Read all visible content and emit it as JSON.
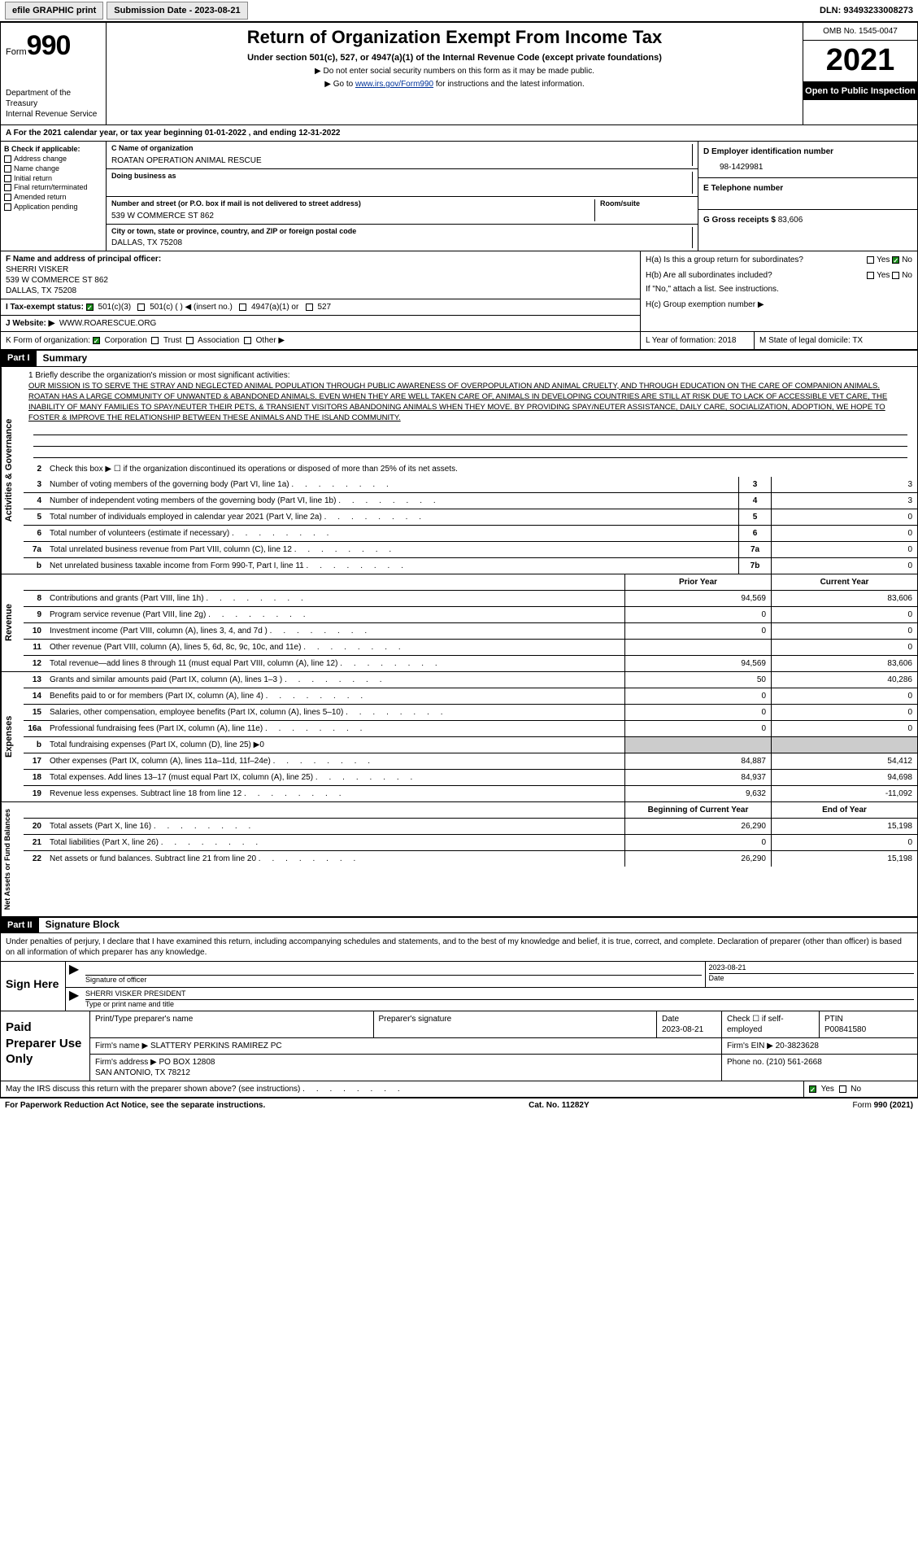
{
  "topbar": {
    "efile": "efile GRAPHIC print",
    "sub_label": "Submission Date - 2023-08-21",
    "dln": "DLN: 93493233008273"
  },
  "header": {
    "form_prefix": "Form",
    "form_num": "990",
    "title": "Return of Organization Exempt From Income Tax",
    "sub": "Under section 501(c), 527, or 4947(a)(1) of the Internal Revenue Code (except private foundations)",
    "note1": "▶ Do not enter social security numbers on this form as it may be made public.",
    "note2_a": "▶ Go to ",
    "note2_link": "www.irs.gov/Form990",
    "note2_b": " for instructions and the latest information.",
    "dept": "Department of the Treasury\nInternal Revenue Service",
    "omb": "OMB No. 1545-0047",
    "year": "2021",
    "open": "Open to Public Inspection"
  },
  "rowA": "A For the 2021 calendar year, or tax year beginning 01-01-2022  , and ending 12-31-2022",
  "B": {
    "label": "B Check if applicable:",
    "items": [
      "Address change",
      "Name change",
      "Initial return",
      "Final return/terminated",
      "Amended return",
      "Application pending"
    ]
  },
  "C": {
    "name_lab": "C Name of organization",
    "name": "ROATAN OPERATION ANIMAL RESCUE",
    "dba_lab": "Doing business as",
    "addr_lab": "Number and street (or P.O. box if mail is not delivered to street address)",
    "addr": "539 W COMMERCE ST 862",
    "room_lab": "Room/suite",
    "city_lab": "City or town, state or province, country, and ZIP or foreign postal code",
    "city": "DALLAS, TX  75208"
  },
  "D": {
    "lab": "D Employer identification number",
    "val": "98-1429981"
  },
  "E": {
    "lab": "E Telephone number",
    "val": ""
  },
  "G": {
    "lab": "G Gross receipts $",
    "val": "83,606"
  },
  "F": {
    "lab": "F  Name and address of principal officer:",
    "name": "SHERRI VISKER",
    "addr1": "539 W COMMERCE ST 862",
    "addr2": "DALLAS, TX  75208"
  },
  "H": {
    "a": "H(a)  Is this a group return for subordinates?",
    "b": "H(b)  Are all subordinates included?",
    "note": "If \"No,\" attach a list. See instructions.",
    "c": "H(c)  Group exemption number ▶",
    "yes": "Yes",
    "no": "No"
  },
  "I": {
    "lab": "I  Tax-exempt status:",
    "opts": [
      "501(c)(3)",
      "501(c) (  ) ◀ (insert no.)",
      "4947(a)(1) or",
      "527"
    ]
  },
  "J": {
    "lab": "J  Website: ▶",
    "val": "WWW.ROARESCUE.ORG"
  },
  "K": {
    "lab": "K Form of organization:",
    "opts": [
      "Corporation",
      "Trust",
      "Association",
      "Other ▶"
    ]
  },
  "L": {
    "lab": "L Year of formation:",
    "val": "2018"
  },
  "M": {
    "lab": "M State of legal domicile:",
    "val": "TX"
  },
  "part1": {
    "hdr": "Part I",
    "title": "Summary"
  },
  "mission": {
    "lab": "1   Briefly describe the organization's mission or most significant activities:",
    "txt": "OUR MISSION IS TO SERVE THE STRAY AND NEGLECTED ANIMAL POPULATION THROUGH PUBLIC AWARENESS OF OVERPOPULATION AND ANIMAL CRUELTY, AND THROUGH EDUCATION ON THE CARE OF COMPANION ANIMALS. ROATAN HAS A LARGE COMMUNITY OF UNWANTED & ABANDONED ANIMALS. EVEN WHEN THEY ARE WELL TAKEN CARE OF, ANIMALS IN DEVELOPING COUNTRIES ARE STILL AT RISK DUE TO LACK OF ACCESSIBLE VET CARE, THE INABILITY OF MANY FAMILIES TO SPAY/NEUTER THEIR PETS, & TRANSIENT VISITORS ABANDONING ANIMALS WHEN THEY MOVE. BY PROVIDING SPAY/NEUTER ASSISTANCE, DAILY CARE, SOCIALIZATION, ADOPTION, WE HOPE TO FOSTER & IMPROVE THE RELATIONSHIP BETWEEN THESE ANIMALS AND THE ISLAND COMMUNITY."
  },
  "lines_gov": [
    {
      "n": "2",
      "t": "Check this box ▶ ☐ if the organization discontinued its operations or disposed of more than 25% of its net assets."
    },
    {
      "n": "3",
      "t": "Number of voting members of the governing body (Part VI, line 1a)",
      "box": "3",
      "v": "3"
    },
    {
      "n": "4",
      "t": "Number of independent voting members of the governing body (Part VI, line 1b)",
      "box": "4",
      "v": "3"
    },
    {
      "n": "5",
      "t": "Total number of individuals employed in calendar year 2021 (Part V, line 2a)",
      "box": "5",
      "v": "0"
    },
    {
      "n": "6",
      "t": "Total number of volunteers (estimate if necessary)",
      "box": "6",
      "v": "0"
    },
    {
      "n": "7a",
      "t": "Total unrelated business revenue from Part VIII, column (C), line 12",
      "box": "7a",
      "v": "0"
    },
    {
      "n": "b",
      "t": "Net unrelated business taxable income from Form 990-T, Part I, line 11",
      "box": "7b",
      "v": "0"
    }
  ],
  "cols": {
    "prior": "Prior Year",
    "curr": "Current Year",
    "boy": "Beginning of Current Year",
    "eoy": "End of Year"
  },
  "rev": [
    {
      "n": "8",
      "t": "Contributions and grants (Part VIII, line 1h)",
      "p": "94,569",
      "c": "83,606"
    },
    {
      "n": "9",
      "t": "Program service revenue (Part VIII, line 2g)",
      "p": "0",
      "c": "0"
    },
    {
      "n": "10",
      "t": "Investment income (Part VIII, column (A), lines 3, 4, and 7d )",
      "p": "0",
      "c": "0"
    },
    {
      "n": "11",
      "t": "Other revenue (Part VIII, column (A), lines 5, 6d, 8c, 9c, 10c, and 11e)",
      "p": "",
      "c": "0"
    },
    {
      "n": "12",
      "t": "Total revenue—add lines 8 through 11 (must equal Part VIII, column (A), line 12)",
      "p": "94,569",
      "c": "83,606"
    }
  ],
  "exp": [
    {
      "n": "13",
      "t": "Grants and similar amounts paid (Part IX, column (A), lines 1–3 )",
      "p": "50",
      "c": "40,286"
    },
    {
      "n": "14",
      "t": "Benefits paid to or for members (Part IX, column (A), line 4)",
      "p": "0",
      "c": "0"
    },
    {
      "n": "15",
      "t": "Salaries, other compensation, employee benefits (Part IX, column (A), lines 5–10)",
      "p": "0",
      "c": "0"
    },
    {
      "n": "16a",
      "t": "Professional fundraising fees (Part IX, column (A), line 11e)",
      "p": "0",
      "c": "0"
    },
    {
      "n": "b",
      "t": "Total fundraising expenses (Part IX, column (D), line 25) ▶0",
      "p": "",
      "c": "",
      "grey": true
    },
    {
      "n": "17",
      "t": "Other expenses (Part IX, column (A), lines 11a–11d, 11f–24e)",
      "p": "84,887",
      "c": "54,412"
    },
    {
      "n": "18",
      "t": "Total expenses. Add lines 13–17 (must equal Part IX, column (A), line 25)",
      "p": "84,937",
      "c": "94,698"
    },
    {
      "n": "19",
      "t": "Revenue less expenses. Subtract line 18 from line 12",
      "p": "9,632",
      "c": "-11,092"
    }
  ],
  "net": [
    {
      "n": "20",
      "t": "Total assets (Part X, line 16)",
      "p": "26,290",
      "c": "15,198"
    },
    {
      "n": "21",
      "t": "Total liabilities (Part X, line 26)",
      "p": "0",
      "c": "0"
    },
    {
      "n": "22",
      "t": "Net assets or fund balances. Subtract line 21 from line 20",
      "p": "26,290",
      "c": "15,198"
    }
  ],
  "part2": {
    "hdr": "Part II",
    "title": "Signature Block"
  },
  "sig": {
    "intro": "Under penalties of perjury, I declare that I have examined this return, including accompanying schedules and statements, and to the best of my knowledge and belief, it is true, correct, and complete. Declaration of preparer (other than officer) is based on all information of which preparer has any knowledge.",
    "sign_here": "Sign Here",
    "sig_of": "Signature of officer",
    "date": "2023-08-21",
    "date_lab": "Date",
    "name": "SHERRI VISKER  PRESIDENT",
    "name_lab": "Type or print name and title"
  },
  "prep": {
    "title": "Paid Preparer Use Only",
    "h1": "Print/Type preparer's name",
    "h2": "Preparer's signature",
    "h3": "Date",
    "h3v": "2023-08-21",
    "h4": "Check ☐ if self-employed",
    "h5": "PTIN",
    "h5v": "P00841580",
    "firm_lab": "Firm's name  ▶",
    "firm": "SLATTERY PERKINS RAMIREZ PC",
    "ein_lab": "Firm's EIN ▶",
    "ein": "20-3823628",
    "addr_lab": "Firm's address ▶",
    "addr": "PO BOX 12808\nSAN ANTONIO, TX  78212",
    "phone_lab": "Phone no.",
    "phone": "(210) 561-2668"
  },
  "discuss": "May the IRS discuss this return with the preparer shown above? (see instructions)",
  "footer": {
    "l": "For Paperwork Reduction Act Notice, see the separate instructions.",
    "m": "Cat. No. 11282Y",
    "r": "Form 990 (2021)"
  }
}
